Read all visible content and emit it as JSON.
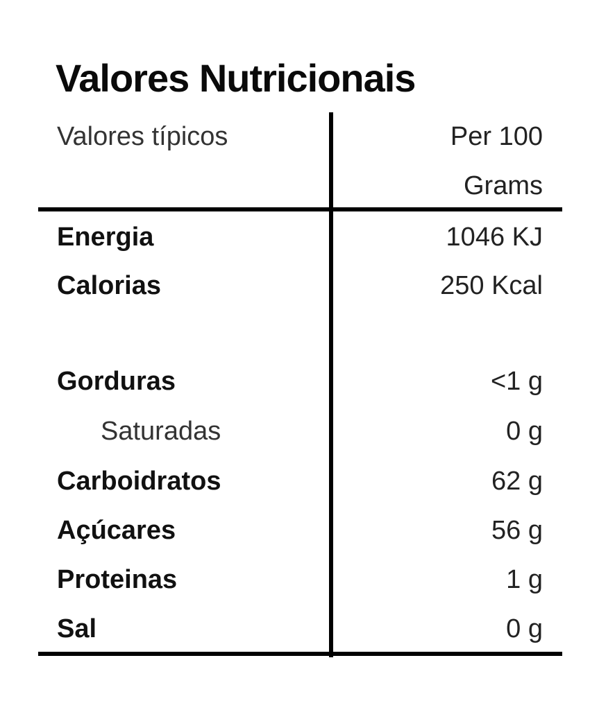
{
  "title": "Valores Nutricionais",
  "header": {
    "label": "Valores típicos",
    "value_line1": "Per 100",
    "value_line2": "Grams"
  },
  "rows": [
    {
      "label": "Energia",
      "value": "1046 KJ"
    },
    {
      "label": "Calorias",
      "value": "250 Kcal"
    },
    {
      "label": "Gorduras",
      "value": "<1 g"
    },
    {
      "label": "Saturadas",
      "value": "0 g"
    },
    {
      "label": "Carboidratos",
      "value": "62 g"
    },
    {
      "label": "Açúcares",
      "value": "56 g"
    },
    {
      "label": "Proteinas",
      "value": "1 g"
    },
    {
      "label": "Sal",
      "value": "0 g"
    }
  ]
}
